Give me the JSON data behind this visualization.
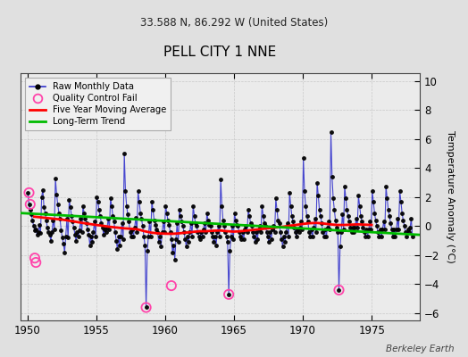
{
  "title": "PELL CITY 1 NNE",
  "subtitle": "33.588 N, 86.292 W (United States)",
  "ylabel": "Temperature Anomaly (°C)",
  "credit": "Berkeley Earth",
  "xlim": [
    1949.5,
    1978.5
  ],
  "ylim": [
    -6.5,
    10.5
  ],
  "yticks": [
    -6,
    -4,
    -2,
    0,
    2,
    4,
    6,
    8,
    10
  ],
  "xticks": [
    1950,
    1955,
    1960,
    1965,
    1970,
    1975
  ],
  "fig_bg_color": "#e0e0e0",
  "plot_bg_color": "#ebebeb",
  "raw_line_color": "#3333cc",
  "raw_dot_color": "#000000",
  "qc_color": "#ff44aa",
  "moving_avg_color": "#ff0000",
  "trend_color": "#00bb00",
  "raw_data": [
    [
      1950.042,
      2.3
    ],
    [
      1950.125,
      1.5
    ],
    [
      1950.208,
      1.1
    ],
    [
      1950.292,
      0.8
    ],
    [
      1950.375,
      0.4
    ],
    [
      1950.458,
      0.0
    ],
    [
      1950.542,
      -0.3
    ],
    [
      1950.625,
      -0.2
    ],
    [
      1950.708,
      -0.6
    ],
    [
      1950.792,
      -0.4
    ],
    [
      1950.875,
      0.1
    ],
    [
      1950.958,
      -0.5
    ],
    [
      1951.042,
      2.0
    ],
    [
      1951.125,
      2.5
    ],
    [
      1951.208,
      1.3
    ],
    [
      1951.292,
      0.9
    ],
    [
      1951.375,
      0.4
    ],
    [
      1951.458,
      -0.1
    ],
    [
      1951.542,
      -0.4
    ],
    [
      1951.625,
      -0.6
    ],
    [
      1951.708,
      -1.0
    ],
    [
      1951.792,
      -0.4
    ],
    [
      1951.875,
      0.4
    ],
    [
      1951.958,
      -0.2
    ],
    [
      1952.042,
      3.3
    ],
    [
      1952.125,
      2.2
    ],
    [
      1952.208,
      1.5
    ],
    [
      1952.292,
      0.9
    ],
    [
      1952.375,
      0.5
    ],
    [
      1952.458,
      -0.3
    ],
    [
      1952.542,
      -0.8
    ],
    [
      1952.625,
      -1.2
    ],
    [
      1952.708,
      -1.8
    ],
    [
      1952.792,
      -0.7
    ],
    [
      1952.875,
      0.5
    ],
    [
      1952.958,
      -0.8
    ],
    [
      1953.042,
      1.8
    ],
    [
      1953.125,
      1.3
    ],
    [
      1953.208,
      0.7
    ],
    [
      1953.292,
      0.3
    ],
    [
      1953.375,
      -0.1
    ],
    [
      1953.458,
      -0.6
    ],
    [
      1953.542,
      -1.0
    ],
    [
      1953.625,
      -0.4
    ],
    [
      1953.708,
      -0.7
    ],
    [
      1953.792,
      -0.3
    ],
    [
      1953.875,
      0.5
    ],
    [
      1953.958,
      -0.4
    ],
    [
      1954.042,
      1.4
    ],
    [
      1954.125,
      0.9
    ],
    [
      1954.208,
      0.5
    ],
    [
      1954.292,
      0.2
    ],
    [
      1954.375,
      -0.2
    ],
    [
      1954.458,
      -0.6
    ],
    [
      1954.542,
      -1.3
    ],
    [
      1954.625,
      -0.7
    ],
    [
      1954.708,
      -1.1
    ],
    [
      1954.792,
      -0.4
    ],
    [
      1954.875,
      0.3
    ],
    [
      1954.958,
      -0.7
    ],
    [
      1955.042,
      2.0
    ],
    [
      1955.125,
      1.7
    ],
    [
      1955.208,
      1.1
    ],
    [
      1955.292,
      0.7
    ],
    [
      1955.375,
      0.2
    ],
    [
      1955.458,
      -0.1
    ],
    [
      1955.542,
      -0.6
    ],
    [
      1955.625,
      -0.2
    ],
    [
      1955.708,
      -0.4
    ],
    [
      1955.792,
      -0.1
    ],
    [
      1955.875,
      0.5
    ],
    [
      1955.958,
      -0.2
    ],
    [
      1956.042,
      1.9
    ],
    [
      1956.125,
      1.4
    ],
    [
      1956.208,
      0.7
    ],
    [
      1956.292,
      0.3
    ],
    [
      1956.375,
      -0.4
    ],
    [
      1956.458,
      -1.0
    ],
    [
      1956.542,
      -1.6
    ],
    [
      1956.625,
      -0.7
    ],
    [
      1956.708,
      -1.3
    ],
    [
      1956.792,
      -0.7
    ],
    [
      1956.875,
      0.2
    ],
    [
      1956.958,
      -0.9
    ],
    [
      1957.042,
      5.0
    ],
    [
      1957.125,
      2.4
    ],
    [
      1957.208,
      1.4
    ],
    [
      1957.292,
      0.8
    ],
    [
      1957.375,
      0.3
    ],
    [
      1957.458,
      -0.4
    ],
    [
      1957.542,
      -0.7
    ],
    [
      1957.625,
      -0.2
    ],
    [
      1957.708,
      -0.7
    ],
    [
      1957.792,
      -0.1
    ],
    [
      1957.875,
      0.6
    ],
    [
      1957.958,
      -0.4
    ],
    [
      1958.042,
      2.4
    ],
    [
      1958.125,
      1.7
    ],
    [
      1958.208,
      0.9
    ],
    [
      1958.292,
      0.5
    ],
    [
      1958.375,
      0.0
    ],
    [
      1958.458,
      -0.7
    ],
    [
      1958.542,
      -1.3
    ],
    [
      1958.625,
      -5.6
    ],
    [
      1958.708,
      -1.7
    ],
    [
      1958.792,
      -0.7
    ],
    [
      1958.875,
      0.3
    ],
    [
      1958.958,
      -0.7
    ],
    [
      1959.042,
      1.7
    ],
    [
      1959.125,
      1.1
    ],
    [
      1959.208,
      0.4
    ],
    [
      1959.292,
      0.1
    ],
    [
      1959.375,
      -0.2
    ],
    [
      1959.458,
      -0.4
    ],
    [
      1959.542,
      -1.1
    ],
    [
      1959.625,
      -0.7
    ],
    [
      1959.708,
      -1.4
    ],
    [
      1959.792,
      -0.4
    ],
    [
      1959.875,
      0.3
    ],
    [
      1959.958,
      -0.4
    ],
    [
      1960.042,
      1.4
    ],
    [
      1960.125,
      0.9
    ],
    [
      1960.208,
      0.4
    ],
    [
      1960.292,
      0.1
    ],
    [
      1960.375,
      -0.4
    ],
    [
      1960.458,
      -0.9
    ],
    [
      1960.542,
      -1.8
    ],
    [
      1960.625,
      -1.3
    ],
    [
      1960.708,
      -2.3
    ],
    [
      1960.792,
      -0.9
    ],
    [
      1960.875,
      0.2
    ],
    [
      1960.958,
      -1.1
    ],
    [
      1961.042,
      1.1
    ],
    [
      1961.125,
      0.7
    ],
    [
      1961.208,
      0.3
    ],
    [
      1961.292,
      0.0
    ],
    [
      1961.375,
      -0.4
    ],
    [
      1961.458,
      -0.9
    ],
    [
      1961.542,
      -1.4
    ],
    [
      1961.625,
      -0.7
    ],
    [
      1961.708,
      -1.1
    ],
    [
      1961.792,
      -0.4
    ],
    [
      1961.875,
      0.2
    ],
    [
      1961.958,
      -0.7
    ],
    [
      1962.042,
      1.4
    ],
    [
      1962.125,
      0.7
    ],
    [
      1962.208,
      0.2
    ],
    [
      1962.292,
      0.0
    ],
    [
      1962.375,
      -0.4
    ],
    [
      1962.458,
      -0.7
    ],
    [
      1962.542,
      -0.9
    ],
    [
      1962.625,
      -0.4
    ],
    [
      1962.708,
      -0.7
    ],
    [
      1962.792,
      -0.2
    ],
    [
      1962.875,
      0.2
    ],
    [
      1962.958,
      -0.4
    ],
    [
      1963.042,
      0.9
    ],
    [
      1963.125,
      0.4
    ],
    [
      1963.208,
      0.1
    ],
    [
      1963.292,
      0.0
    ],
    [
      1963.375,
      -0.4
    ],
    [
      1963.458,
      -0.7
    ],
    [
      1963.542,
      -1.1
    ],
    [
      1963.625,
      -0.7
    ],
    [
      1963.708,
      -1.3
    ],
    [
      1963.792,
      -0.4
    ],
    [
      1963.875,
      0.0
    ],
    [
      1963.958,
      -0.7
    ],
    [
      1964.042,
      3.2
    ],
    [
      1964.125,
      1.4
    ],
    [
      1964.208,
      0.4
    ],
    [
      1964.292,
      0.0
    ],
    [
      1964.375,
      -0.4
    ],
    [
      1964.458,
      -0.7
    ],
    [
      1964.542,
      -1.1
    ],
    [
      1964.625,
      -4.7
    ],
    [
      1964.708,
      -1.7
    ],
    [
      1964.792,
      -0.7
    ],
    [
      1964.875,
      0.0
    ],
    [
      1964.958,
      -0.9
    ],
    [
      1965.042,
      0.9
    ],
    [
      1965.125,
      0.4
    ],
    [
      1965.208,
      0.1
    ],
    [
      1965.292,
      0.0
    ],
    [
      1965.375,
      -0.4
    ],
    [
      1965.458,
      -0.7
    ],
    [
      1965.542,
      -0.9
    ],
    [
      1965.625,
      -0.4
    ],
    [
      1965.708,
      -0.9
    ],
    [
      1965.792,
      -0.2
    ],
    [
      1965.875,
      0.0
    ],
    [
      1965.958,
      -0.4
    ],
    [
      1966.042,
      1.1
    ],
    [
      1966.125,
      0.7
    ],
    [
      1966.208,
      0.2
    ],
    [
      1966.292,
      0.0
    ],
    [
      1966.375,
      -0.4
    ],
    [
      1966.458,
      -0.7
    ],
    [
      1966.542,
      -1.1
    ],
    [
      1966.625,
      -0.4
    ],
    [
      1966.708,
      -0.9
    ],
    [
      1966.792,
      -0.2
    ],
    [
      1966.875,
      0.0
    ],
    [
      1966.958,
      -0.4
    ],
    [
      1967.042,
      1.4
    ],
    [
      1967.125,
      0.7
    ],
    [
      1967.208,
      0.2
    ],
    [
      1967.292,
      0.0
    ],
    [
      1967.375,
      -0.4
    ],
    [
      1967.458,
      -0.7
    ],
    [
      1967.542,
      -1.1
    ],
    [
      1967.625,
      -0.4
    ],
    [
      1967.708,
      -0.9
    ],
    [
      1967.792,
      -0.2
    ],
    [
      1967.875,
      0.0
    ],
    [
      1967.958,
      -0.4
    ],
    [
      1968.042,
      1.9
    ],
    [
      1968.125,
      1.1
    ],
    [
      1968.208,
      0.4
    ],
    [
      1968.292,
      0.2
    ],
    [
      1968.375,
      -0.4
    ],
    [
      1968.458,
      -0.9
    ],
    [
      1968.542,
      -1.4
    ],
    [
      1968.625,
      -0.7
    ],
    [
      1968.708,
      -1.1
    ],
    [
      1968.792,
      -0.4
    ],
    [
      1968.875,
      0.2
    ],
    [
      1968.958,
      -0.7
    ],
    [
      1969.042,
      2.3
    ],
    [
      1969.125,
      1.4
    ],
    [
      1969.208,
      0.7
    ],
    [
      1969.292,
      0.3
    ],
    [
      1969.375,
      -0.1
    ],
    [
      1969.458,
      -0.4
    ],
    [
      1969.542,
      -0.7
    ],
    [
      1969.625,
      -0.2
    ],
    [
      1969.708,
      -0.4
    ],
    [
      1969.792,
      -0.1
    ],
    [
      1969.875,
      0.3
    ],
    [
      1969.958,
      -0.2
    ],
    [
      1970.042,
      4.7
    ],
    [
      1970.125,
      2.4
    ],
    [
      1970.208,
      1.4
    ],
    [
      1970.292,
      0.7
    ],
    [
      1970.375,
      0.3
    ],
    [
      1970.458,
      -0.4
    ],
    [
      1970.542,
      -0.7
    ],
    [
      1970.625,
      -0.2
    ],
    [
      1970.708,
      -0.7
    ],
    [
      1970.792,
      -0.1
    ],
    [
      1970.875,
      0.5
    ],
    [
      1970.958,
      -0.4
    ],
    [
      1971.042,
      3.0
    ],
    [
      1971.125,
      2.1
    ],
    [
      1971.208,
      1.1
    ],
    [
      1971.292,
      0.7
    ],
    [
      1971.375,
      0.2
    ],
    [
      1971.458,
      -0.4
    ],
    [
      1971.542,
      -0.7
    ],
    [
      1971.625,
      -0.2
    ],
    [
      1971.708,
      -0.7
    ],
    [
      1971.792,
      -0.1
    ],
    [
      1971.875,
      0.3
    ],
    [
      1971.958,
      -0.2
    ],
    [
      1972.042,
      6.5
    ],
    [
      1972.125,
      3.4
    ],
    [
      1972.208,
      1.9
    ],
    [
      1972.292,
      1.1
    ],
    [
      1972.375,
      0.4
    ],
    [
      1972.458,
      -0.1
    ],
    [
      1972.542,
      -0.4
    ],
    [
      1972.625,
      -4.4
    ],
    [
      1972.708,
      -1.4
    ],
    [
      1972.792,
      -0.4
    ],
    [
      1972.875,
      0.8
    ],
    [
      1972.958,
      -0.2
    ],
    [
      1973.042,
      2.7
    ],
    [
      1973.125,
      1.9
    ],
    [
      1973.208,
      1.1
    ],
    [
      1973.292,
      0.7
    ],
    [
      1973.375,
      0.3
    ],
    [
      1973.458,
      -0.1
    ],
    [
      1973.542,
      -0.4
    ],
    [
      1973.625,
      -0.1
    ],
    [
      1973.708,
      -0.4
    ],
    [
      1973.792,
      -0.1
    ],
    [
      1973.875,
      0.5
    ],
    [
      1973.958,
      -0.1
    ],
    [
      1974.042,
      2.1
    ],
    [
      1974.125,
      1.4
    ],
    [
      1974.208,
      0.7
    ],
    [
      1974.292,
      0.3
    ],
    [
      1974.375,
      -0.1
    ],
    [
      1974.458,
      -0.4
    ],
    [
      1974.542,
      -0.7
    ],
    [
      1974.625,
      -0.2
    ],
    [
      1974.708,
      -0.7
    ],
    [
      1974.792,
      -0.2
    ],
    [
      1974.875,
      0.3
    ],
    [
      1974.958,
      -0.2
    ],
    [
      1975.042,
      2.4
    ],
    [
      1975.125,
      1.7
    ],
    [
      1975.208,
      0.9
    ],
    [
      1975.292,
      0.4
    ],
    [
      1975.375,
      0.0
    ],
    [
      1975.458,
      -0.4
    ],
    [
      1975.542,
      -0.7
    ],
    [
      1975.625,
      -0.2
    ],
    [
      1975.708,
      -0.7
    ],
    [
      1975.792,
      -0.2
    ],
    [
      1975.875,
      0.3
    ],
    [
      1975.958,
      -0.2
    ],
    [
      1976.042,
      2.7
    ],
    [
      1976.125,
      1.9
    ],
    [
      1976.208,
      1.1
    ],
    [
      1976.292,
      0.7
    ],
    [
      1976.375,
      0.2
    ],
    [
      1976.458,
      -0.2
    ],
    [
      1976.542,
      -0.7
    ],
    [
      1976.625,
      -0.2
    ],
    [
      1976.708,
      -0.7
    ],
    [
      1976.792,
      -0.2
    ],
    [
      1976.875,
      0.5
    ],
    [
      1976.958,
      -0.2
    ],
    [
      1977.042,
      2.4
    ],
    [
      1977.125,
      1.7
    ],
    [
      1977.208,
      0.9
    ],
    [
      1977.292,
      0.4
    ],
    [
      1977.375,
      0.0
    ],
    [
      1977.458,
      -0.4
    ],
    [
      1977.542,
      -0.7
    ],
    [
      1977.625,
      -0.2
    ],
    [
      1977.708,
      -0.4
    ],
    [
      1977.792,
      -0.1
    ],
    [
      1977.875,
      0.5
    ],
    [
      1977.958,
      -0.7
    ]
  ],
  "qc_fail_points": [
    [
      1950.125,
      2.3
    ],
    [
      1950.208,
      1.5
    ],
    [
      1950.542,
      -2.2
    ],
    [
      1950.625,
      -2.5
    ],
    [
      1958.625,
      -5.6
    ],
    [
      1960.458,
      -4.1
    ],
    [
      1964.625,
      -4.7
    ],
    [
      1972.625,
      -4.4
    ]
  ],
  "moving_avg": [
    [
      1950.5,
      0.65
    ],
    [
      1951.0,
      0.6
    ],
    [
      1951.5,
      0.55
    ],
    [
      1952.0,
      0.5
    ],
    [
      1952.5,
      0.45
    ],
    [
      1953.0,
      0.38
    ],
    [
      1953.5,
      0.3
    ],
    [
      1954.0,
      0.22
    ],
    [
      1954.5,
      0.15
    ],
    [
      1955.0,
      0.08
    ],
    [
      1955.5,
      0.02
    ],
    [
      1956.0,
      -0.05
    ],
    [
      1956.5,
      -0.1
    ],
    [
      1957.0,
      -0.15
    ],
    [
      1957.5,
      -0.18
    ],
    [
      1958.0,
      -0.22
    ],
    [
      1958.5,
      -0.35
    ],
    [
      1959.0,
      -0.45
    ],
    [
      1959.5,
      -0.5
    ],
    [
      1960.0,
      -0.52
    ],
    [
      1960.5,
      -0.53
    ],
    [
      1961.0,
      -0.5
    ],
    [
      1961.5,
      -0.45
    ],
    [
      1962.0,
      -0.4
    ],
    [
      1962.5,
      -0.35
    ],
    [
      1963.0,
      -0.35
    ],
    [
      1963.5,
      -0.32
    ],
    [
      1964.0,
      -0.3
    ],
    [
      1964.5,
      -0.35
    ],
    [
      1965.0,
      -0.38
    ],
    [
      1965.5,
      -0.35
    ],
    [
      1966.0,
      -0.3
    ],
    [
      1966.5,
      -0.25
    ],
    [
      1967.0,
      -0.2
    ],
    [
      1967.5,
      -0.15
    ],
    [
      1968.0,
      -0.1
    ],
    [
      1968.5,
      -0.05
    ],
    [
      1969.0,
      0.02
    ],
    [
      1969.5,
      0.08
    ],
    [
      1970.0,
      0.15
    ],
    [
      1970.5,
      0.2
    ],
    [
      1971.0,
      0.22
    ],
    [
      1971.5,
      0.18
    ],
    [
      1972.0,
      0.12
    ],
    [
      1972.5,
      0.08
    ],
    [
      1973.0,
      0.08
    ],
    [
      1973.5,
      0.1
    ],
    [
      1974.0,
      0.12
    ],
    [
      1974.5,
      0.1
    ],
    [
      1975.0,
      0.08
    ]
  ],
  "trend_x": [
    1949.5,
    1978.5
  ],
  "trend_y": [
    0.9,
    -0.6
  ]
}
